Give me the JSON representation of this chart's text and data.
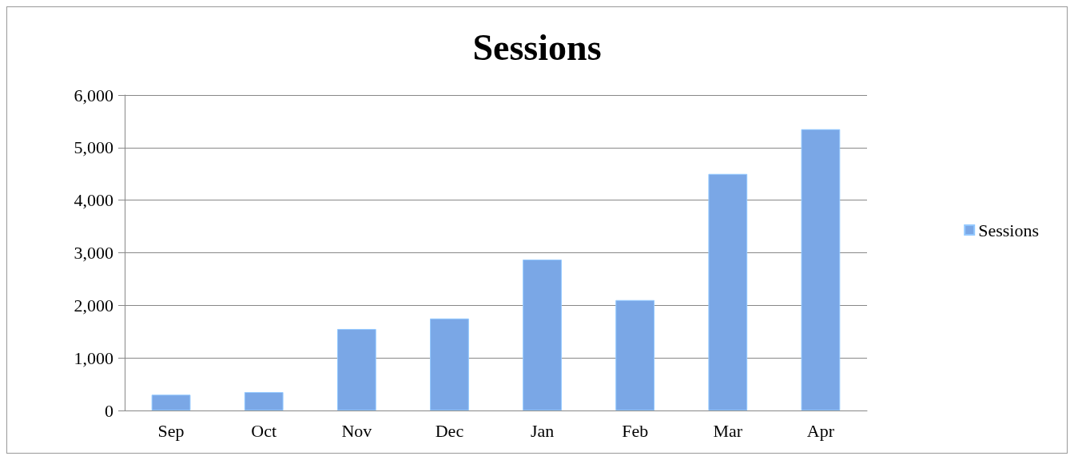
{
  "chart_data": {
    "type": "bar",
    "title": "Sessions",
    "categories": [
      "Sep",
      "Oct",
      "Nov",
      "Dec",
      "Jan",
      "Feb",
      "Mar",
      "Apr"
    ],
    "series": [
      {
        "name": "Sessions",
        "color": "#7aa7e6",
        "values": [
          300,
          350,
          1550,
          1750,
          2870,
          2100,
          4500,
          5350
        ]
      }
    ],
    "ylim": [
      0,
      6000
    ],
    "yticks": [
      {
        "value": 0,
        "label": "0"
      },
      {
        "value": 1000,
        "label": "1,000"
      },
      {
        "value": 2000,
        "label": "2,000"
      },
      {
        "value": 3000,
        "label": "3,000"
      },
      {
        "value": 4000,
        "label": "4,000"
      },
      {
        "value": 5000,
        "label": "5,000"
      },
      {
        "value": 6000,
        "label": "6,000"
      }
    ],
    "grid": "y",
    "legend": "right"
  }
}
